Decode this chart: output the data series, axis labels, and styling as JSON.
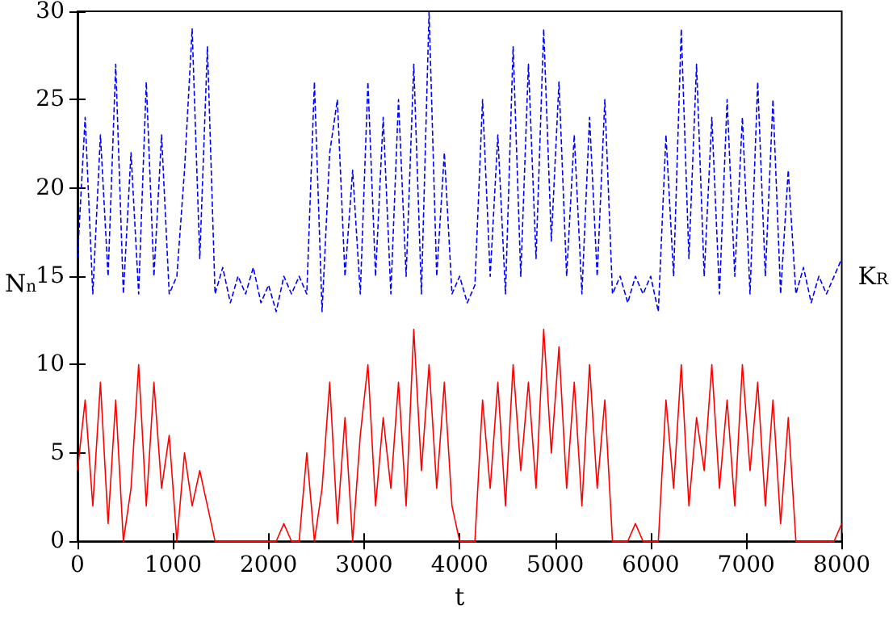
{
  "chart_data": {
    "type": "line",
    "xlabel": "t",
    "ylabel": "N$_{n}$",
    "y2label": "K$_{R}$",
    "x": [
      0,
      80,
      160,
      240,
      320,
      400,
      480,
      560,
      640,
      720,
      800,
      880,
      960,
      1040,
      1120,
      1200,
      1280,
      1360,
      1440,
      1520,
      1600,
      1680,
      1760,
      1840,
      1920,
      2000,
      2080,
      2160,
      2240,
      2320,
      2400,
      2480,
      2560,
      2640,
      2720,
      2800,
      2880,
      2960,
      3040,
      3120,
      3200,
      3280,
      3360,
      3440,
      3520,
      3600,
      3680,
      3760,
      3840,
      3920,
      4000,
      4080,
      4160,
      4240,
      4320,
      4400,
      4480,
      4560,
      4640,
      4720,
      4800,
      4880,
      4960,
      5040,
      5120,
      5200,
      5280,
      5360,
      5440,
      5520,
      5600,
      5680,
      5760,
      5840,
      5920,
      6000,
      6080,
      6160,
      6240,
      6320,
      6400,
      6480,
      6560,
      6640,
      6720,
      6800,
      6880,
      6960,
      7040,
      7120,
      7200,
      7280,
      7360,
      7440,
      7520,
      7600,
      7680,
      7760,
      7840,
      7920,
      8000
    ],
    "series": [
      {
        "color": "#0000ff",
        "line_style": "dashed",
        "values": [
          16,
          24,
          14,
          23,
          15,
          27,
          14,
          22,
          14,
          26,
          15,
          23,
          14,
          15,
          21,
          29,
          16,
          28,
          14,
          15.5,
          13.5,
          15,
          14,
          15.5,
          13.5,
          14.5,
          13,
          15,
          14,
          15,
          14,
          26,
          13,
          22,
          25,
          15,
          21,
          14,
          26,
          15,
          24,
          14,
          25,
          15,
          27,
          14,
          30,
          15,
          22,
          14,
          15,
          13.5,
          14.5,
          25,
          15,
          23,
          14,
          28,
          15,
          27,
          16,
          29,
          17,
          26,
          15,
          23,
          14,
          24,
          15,
          25,
          14,
          15,
          13.5,
          15,
          14,
          15,
          13,
          23,
          15,
          29,
          16,
          27,
          15,
          24,
          14,
          25,
          15,
          24,
          14,
          26,
          15,
          25,
          14,
          21,
          14,
          15.5,
          13.5,
          15,
          14,
          15,
          16
        ]
      },
      {
        "color": "#ff0000",
        "line_style": "solid",
        "values": [
          4,
          8,
          2,
          9,
          1,
          8,
          0,
          3,
          10,
          2,
          9,
          3,
          6,
          0,
          5,
          2,
          4,
          2,
          0,
          0,
          0,
          0,
          0,
          0,
          0,
          0,
          0,
          1,
          0,
          0,
          5,
          0,
          3,
          9,
          1,
          7,
          0,
          6,
          10,
          2,
          7,
          3,
          9,
          2,
          12,
          4,
          10,
          3,
          9,
          2,
          0,
          0,
          0,
          8,
          3,
          9,
          2,
          10,
          4,
          9,
          3,
          12,
          5,
          11,
          3,
          9,
          2,
          10,
          3,
          8,
          0,
          0,
          0,
          1,
          0,
          0,
          0,
          8,
          3,
          10,
          2,
          7,
          4,
          10,
          3,
          8,
          2,
          10,
          4,
          9,
          2,
          8,
          1,
          7,
          0,
          0,
          0,
          0,
          0,
          0,
          1
        ]
      }
    ],
    "xlim": [
      0,
      8000
    ],
    "xticks": [
      0,
      1000,
      2000,
      3000,
      4000,
      5000,
      6000,
      7000,
      8000
    ],
    "ylim": [
      0,
      30
    ],
    "yticks": [
      0,
      5,
      10,
      15,
      20,
      25,
      30
    ],
    "grid": false,
    "marker": "none"
  }
}
